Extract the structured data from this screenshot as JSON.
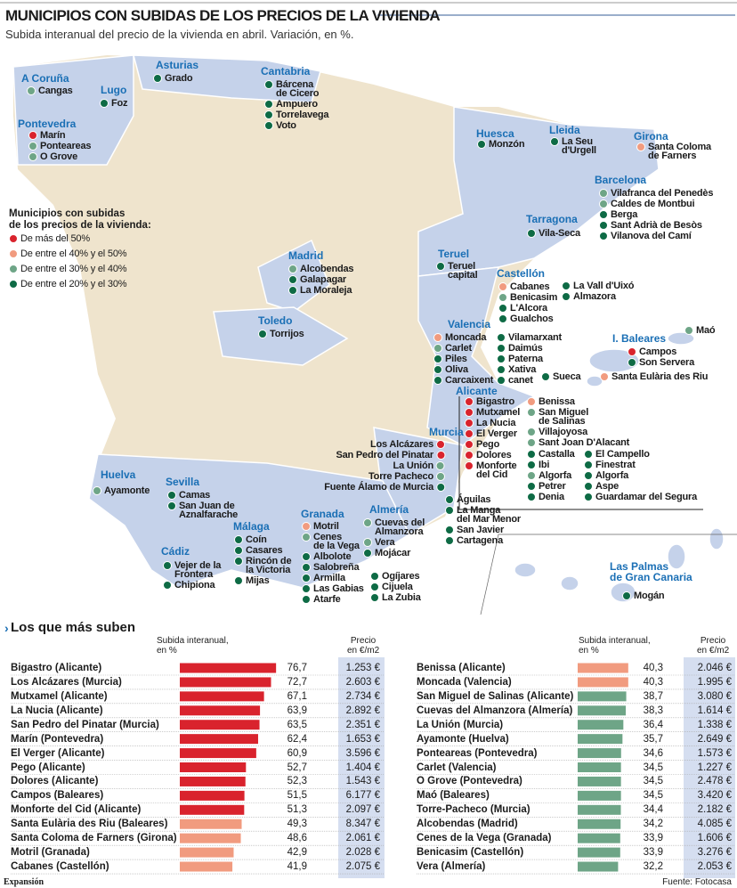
{
  "header": {
    "title": "MUNICIPIOS CON SUBIDAS DE LOS PRECIOS DE LA VIVIENDA",
    "subtitle": "Subida interanual del precio de la vivienda en abril. Variación, en %."
  },
  "legend": {
    "title": "Municipios con subidas\nde los precios de la vivienda:",
    "items": [
      {
        "label": "De más del 50%",
        "color": "#d9232d"
      },
      {
        "label": "De entre el 40% y el 50%",
        "color": "#f19b7f"
      },
      {
        "label": "De entre el 30% y el 40%",
        "color": "#6ea587"
      },
      {
        "label": "De entre el 20% y el 30%",
        "color": "#0e6b45"
      }
    ]
  },
  "map": {
    "regions": [
      {
        "name": "A Coruña",
        "towns": [
          {
            "name": "Cangas",
            "group": 2
          }
        ]
      },
      {
        "name": "Lugo",
        "towns": [
          {
            "name": "Foz",
            "group": 3
          }
        ]
      },
      {
        "name": "Asturias",
        "towns": [
          {
            "name": "Grado",
            "group": 3
          }
        ]
      },
      {
        "name": "Cantabria",
        "towns": [
          {
            "name": "Bárcena\nde Cicero",
            "group": 3
          },
          {
            "name": "Ampuero",
            "group": 3
          },
          {
            "name": "Torrelavega",
            "group": 3
          },
          {
            "name": "Voto",
            "group": 3
          }
        ]
      },
      {
        "name": "Pontevedra",
        "towns": [
          {
            "name": "Marín",
            "group": 0
          },
          {
            "name": "Ponteareas",
            "group": 2
          },
          {
            "name": "O Grove",
            "group": 2
          }
        ]
      },
      {
        "name": "Huesca",
        "towns": [
          {
            "name": "Monzón",
            "group": 3
          }
        ]
      },
      {
        "name": "Lleida",
        "towns": [
          {
            "name": "La Seu\nd'Urgell",
            "group": 3
          }
        ]
      },
      {
        "name": "Girona",
        "towns": [
          {
            "name": "Santa Coloma\nde Farners",
            "group": 1
          }
        ]
      },
      {
        "name": "Barcelona",
        "towns": [
          {
            "name": "Vilafranca del Penedès",
            "group": 2
          },
          {
            "name": "Caldes de Montbui",
            "group": 2
          },
          {
            "name": "Berga",
            "group": 3
          },
          {
            "name": "Sant Adrià de Besòs",
            "group": 3
          },
          {
            "name": "Vilanova del Camí",
            "group": 3
          }
        ]
      },
      {
        "name": "Tarragona",
        "towns": [
          {
            "name": "Vila-Seca",
            "group": 3
          }
        ]
      },
      {
        "name": "Teruel",
        "towns": [
          {
            "name": "Teruel\ncapital",
            "group": 3
          }
        ]
      },
      {
        "name": "Castellón",
        "towns": [
          {
            "name": "Cabanes",
            "group": 1
          },
          {
            "name": "Benicasim",
            "group": 2
          },
          {
            "name": "L'Alcora",
            "group": 3
          },
          {
            "name": "Gualchos",
            "group": 3
          },
          {
            "name": "La Vall d'Uixó",
            "group": 3
          },
          {
            "name": "Almazora",
            "group": 3
          }
        ]
      },
      {
        "name": "Valencia",
        "towns": [
          {
            "name": "Moncada",
            "group": 1
          },
          {
            "name": "Carlet",
            "group": 2
          },
          {
            "name": "Piles",
            "group": 3
          },
          {
            "name": "Oliva",
            "group": 3
          },
          {
            "name": "Carcaixent",
            "group": 3
          },
          {
            "name": "Vilamarxant",
            "group": 3
          },
          {
            "name": "Daimús",
            "group": 3
          },
          {
            "name": "Paterna",
            "group": 3
          },
          {
            "name": "Xativa",
            "group": 3
          },
          {
            "name": "canet",
            "group": 3
          },
          {
            "name": "Sueca",
            "group": 3
          }
        ]
      },
      {
        "name": "I. Baleares",
        "towns": [
          {
            "name": "Campos",
            "group": 0
          },
          {
            "name": "Son Servera",
            "group": 3
          },
          {
            "name": "Santa Eulària des Riu",
            "group": 1
          },
          {
            "name": "Maó",
            "group": 2
          }
        ]
      },
      {
        "name": "Alicante",
        "towns": [
          {
            "name": "Bigastro",
            "group": 0
          },
          {
            "name": "Mutxamel",
            "group": 0
          },
          {
            "name": "La Nucia",
            "group": 0
          },
          {
            "name": "El Verger",
            "group": 0
          },
          {
            "name": "Pego",
            "group": 0
          },
          {
            "name": "Dolores",
            "group": 0
          },
          {
            "name": "Monforte\ndel Cid",
            "group": 0
          },
          {
            "name": "Benissa",
            "group": 1
          },
          {
            "name": "San Miguel\nde Salinas",
            "group": 2
          },
          {
            "name": "Villajoyosa",
            "group": 2
          },
          {
            "name": "Sant Joan D'Alacant",
            "group": 2
          },
          {
            "name": "Castalla",
            "group": 3
          },
          {
            "name": "Ibi",
            "group": 3
          },
          {
            "name": "Algorfa",
            "group": 2
          },
          {
            "name": "Petrer",
            "group": 3
          },
          {
            "name": "Denia",
            "group": 3
          },
          {
            "name": "El Campello",
            "group": 3
          },
          {
            "name": "Finestrat",
            "group": 3
          },
          {
            "name": "Algorfa",
            "group": 3
          },
          {
            "name": "Aspe",
            "group": 3
          },
          {
            "name": "Guardamar del Segura",
            "group": 3
          }
        ]
      },
      {
        "name": "Murcia",
        "towns": [
          {
            "name": "Los Alcázares",
            "group": 0
          },
          {
            "name": "San Pedro del Pinatar",
            "group": 0
          },
          {
            "name": "La Unión",
            "group": 2
          },
          {
            "name": "Torre Pacheco",
            "group": 2
          },
          {
            "name": "Fuente Álamo de Murcia",
            "group": 3
          },
          {
            "name": "Águilas",
            "group": 3
          },
          {
            "name": "La Manga\ndel Mar Menor",
            "group": 3
          },
          {
            "name": "San Javier",
            "group": 3
          },
          {
            "name": "Cartagena",
            "group": 3
          }
        ]
      },
      {
        "name": "Huelva",
        "towns": [
          {
            "name": "Ayamonte",
            "group": 2
          }
        ]
      },
      {
        "name": "Sevilla",
        "towns": [
          {
            "name": "Camas",
            "group": 3
          },
          {
            "name": "San Juan de\nAznalfarache",
            "group": 3
          }
        ]
      },
      {
        "name": "Granada",
        "towns": [
          {
            "name": "Motril",
            "group": 1
          },
          {
            "name": "Cenes\nde la Vega",
            "group": 2
          },
          {
            "name": "Albolote",
            "group": 3
          },
          {
            "name": "Salobreña",
            "group": 3
          },
          {
            "name": "Armilla",
            "group": 3
          },
          {
            "name": "Las Gabias",
            "group": 3
          },
          {
            "name": "Atarfe",
            "group": 3
          }
        ]
      },
      {
        "name": "Almería",
        "towns": [
          {
            "name": "Cuevas del\nAlmanzora",
            "group": 2
          },
          {
            "name": "Vera",
            "group": 2
          },
          {
            "name": "Mojácar",
            "group": 3
          },
          {
            "name": "Ogíjares",
            "group": 3
          },
          {
            "name": "Cijuela",
            "group": 3
          },
          {
            "name": "La Zubia",
            "group": 3
          }
        ]
      },
      {
        "name": "Málaga",
        "towns": [
          {
            "name": "Coín",
            "group": 3
          },
          {
            "name": "Casares",
            "group": 3
          },
          {
            "name": "Rincón de\nla Victoria",
            "group": 3
          },
          {
            "name": "Mijas",
            "group": 3
          }
        ]
      },
      {
        "name": "Cádiz",
        "towns": [
          {
            "name": "Vejer de la\nFrontera",
            "group": 3
          },
          {
            "name": "Chipiona",
            "group": 3
          }
        ]
      },
      {
        "name": "Las Palmas\nde Gran Canaria",
        "towns": [
          {
            "name": "Mogán",
            "group": 3
          }
        ]
      },
      {
        "name": "Madrid",
        "towns": [
          {
            "name": "Alcobendas",
            "group": 2
          },
          {
            "name": "Galapagar",
            "group": 3
          },
          {
            "name": "La Moraleja",
            "group": 3
          }
        ]
      },
      {
        "name": "Toledo",
        "towns": [
          {
            "name": "Torrijos",
            "group": 3
          }
        ]
      }
    ]
  },
  "table": {
    "title": "Los que más suben",
    "columns": [
      "Subida interanual,\nen %",
      "Precio\nen €/m2"
    ],
    "left": [
      {
        "name": "Bigastro (Alicante)",
        "change": 76.7,
        "change_label": "76,7",
        "price": "1.253 €",
        "group": 0
      },
      {
        "name": "Los Alcázares (Murcia)",
        "change": 72.7,
        "change_label": "72,7",
        "price": "2.603 €",
        "group": 0
      },
      {
        "name": "Mutxamel (Alicante)",
        "change": 67.1,
        "change_label": "67,1",
        "price": "2.734 €",
        "group": 0
      },
      {
        "name": "La Nucia (Alicante)",
        "change": 63.9,
        "change_label": "63,9",
        "price": "2.892 €",
        "group": 0
      },
      {
        "name": "San Pedro del Pinatar (Murcia)",
        "change": 63.5,
        "change_label": "63,5",
        "price": "2.351 €",
        "group": 0
      },
      {
        "name": "Marín (Pontevedra)",
        "change": 62.4,
        "change_label": "62,4",
        "price": "1.653 €",
        "group": 0
      },
      {
        "name": "El Verger (Alicante)",
        "change": 60.9,
        "change_label": "60,9",
        "price": "3.596 €",
        "group": 0
      },
      {
        "name": "Pego (Alicante)",
        "change": 52.7,
        "change_label": "52,7",
        "price": "1.404 €",
        "group": 0
      },
      {
        "name": "Dolores (Alicante)",
        "change": 52.3,
        "change_label": "52,3",
        "price": "1.543 €",
        "group": 0
      },
      {
        "name": "Campos (Baleares)",
        "change": 51.5,
        "change_label": "51,5",
        "price": "6.177 €",
        "group": 0
      },
      {
        "name": "Monforte del Cid (Alicante)",
        "change": 51.3,
        "change_label": "51,3",
        "price": "2.097 €",
        "group": 0
      },
      {
        "name": "Santa Eulària des Riu (Baleares)",
        "change": 49.3,
        "change_label": "49,3",
        "price": "8.347 €",
        "group": 1
      },
      {
        "name": "Santa Coloma de Farners (Girona)",
        "change": 48.6,
        "change_label": "48,6",
        "price": "2.061 €",
        "group": 1
      },
      {
        "name": "Motril (Granada)",
        "change": 42.9,
        "change_label": "42,9",
        "price": "2.028 €",
        "group": 1
      },
      {
        "name": "Cabanes (Castellón)",
        "change": 41.9,
        "change_label": "41,9",
        "price": "2.075 €",
        "group": 1
      }
    ],
    "right": [
      {
        "name": "Benissa (Alicante)",
        "change": 40.3,
        "change_label": "40,3",
        "price": "2.046 €",
        "group": 1
      },
      {
        "name": "Moncada (Valencia)",
        "change": 40.3,
        "change_label": "40,3",
        "price": "1.995 €",
        "group": 1
      },
      {
        "name": "San Miguel de Salinas (Alicante)",
        "change": 38.7,
        "change_label": "38,7",
        "price": "3.080 €",
        "group": 2
      },
      {
        "name": "Cuevas del Almanzora (Almería)",
        "change": 38.3,
        "change_label": "38,3",
        "price": "1.614 €",
        "group": 2
      },
      {
        "name": "La Unión (Murcia)",
        "change": 36.4,
        "change_label": "36,4",
        "price": "1.338 €",
        "group": 2
      },
      {
        "name": "Ayamonte (Huelva)",
        "change": 35.7,
        "change_label": "35,7",
        "price": "2.649 €",
        "group": 2
      },
      {
        "name": "Ponteareas (Pontevedra)",
        "change": 34.6,
        "change_label": "34,6",
        "price": "1.573 €",
        "group": 2
      },
      {
        "name": "Carlet (Valencia)",
        "change": 34.5,
        "change_label": "34,5",
        "price": "1.227 €",
        "group": 2
      },
      {
        "name": "O Grove (Pontevedra)",
        "change": 34.5,
        "change_label": "34,5",
        "price": "2.478 €",
        "group": 2
      },
      {
        "name": "Maó (Baleares)",
        "change": 34.5,
        "change_label": "34,5",
        "price": "3.420 €",
        "group": 2
      },
      {
        "name": "Torre-Pacheco (Murcia)",
        "change": 34.4,
        "change_label": "34,4",
        "price": "2.182 €",
        "group": 2
      },
      {
        "name": "Alcobendas (Madrid)",
        "change": 34.2,
        "change_label": "34,2",
        "price": "4.085 €",
        "group": 2
      },
      {
        "name": "Cenes de la Vega (Granada)",
        "change": 33.9,
        "change_label": "33,9",
        "price": "1.606 €",
        "group": 2
      },
      {
        "name": "Benicasim (Castellón)",
        "change": 33.9,
        "change_label": "33,9",
        "price": "3.276 €",
        "group": 2
      },
      {
        "name": "Vera (Almería)",
        "change": 32.2,
        "change_label": "32,2",
        "price": "2.053 €",
        "group": 2
      }
    ]
  },
  "footer": {
    "source": "Expansión",
    "credit": "Fuente: Fotocasa"
  }
}
